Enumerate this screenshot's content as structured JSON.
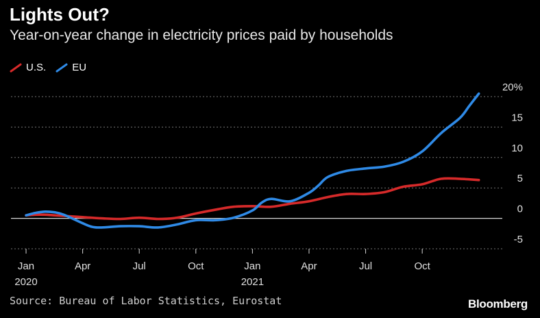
{
  "title": "Lights Out?",
  "subtitle": "Year-on-year change in electricity prices paid by households",
  "legend": [
    {
      "label": "U.S.",
      "color": "#d62a2a",
      "icon": "red-line-icon"
    },
    {
      "label": "EU",
      "color": "#2f8ae6",
      "icon": "blue-line-icon"
    }
  ],
  "source": "Source: Bureau of Labor Statistics, Eurostat",
  "brand": "Bloomberg",
  "chart_data": {
    "type": "line",
    "title": "Lights Out?",
    "subtitle": "Year-on-year change in electricity prices paid by households",
    "xlabel": "",
    "ylabel": "",
    "ylim": [
      -5,
      20
    ],
    "y_ticks": [
      20,
      15,
      10,
      5,
      0,
      -5
    ],
    "y_tick_labels": [
      "20%",
      "15",
      "10",
      "5",
      "0",
      "-5"
    ],
    "x_ticks": [
      {
        "month_index": 0,
        "label": "Jan",
        "sublabel": "2020"
      },
      {
        "month_index": 3,
        "label": "Apr",
        "sublabel": ""
      },
      {
        "month_index": 6,
        "label": "Jul",
        "sublabel": ""
      },
      {
        "month_index": 9,
        "label": "Oct",
        "sublabel": ""
      },
      {
        "month_index": 12,
        "label": "Jan",
        "sublabel": "2021"
      },
      {
        "month_index": 15,
        "label": "Apr",
        "sublabel": ""
      },
      {
        "month_index": 18,
        "label": "Jul",
        "sublabel": ""
      },
      {
        "month_index": 21,
        "label": "Oct",
        "sublabel": ""
      }
    ],
    "x_range": [
      -0.8,
      24.7
    ],
    "grid": true,
    "series": [
      {
        "name": "U.S.",
        "color": "#d62a2a",
        "x": [
          0,
          0.5,
          1,
          1.5,
          2,
          3,
          4,
          5,
          6,
          7,
          8,
          9,
          10,
          11,
          12,
          13,
          14,
          15,
          16,
          17,
          18,
          19,
          20,
          21,
          22,
          23,
          24
        ],
        "values": [
          0.5,
          0.6,
          0.6,
          0.5,
          0.4,
          0.2,
          0.0,
          -0.1,
          0.1,
          -0.1,
          0.1,
          0.8,
          1.4,
          1.9,
          2.0,
          1.9,
          2.4,
          2.8,
          3.5,
          4.0,
          4.0,
          4.3,
          5.2,
          5.6,
          6.5,
          6.5,
          6.3
        ]
      },
      {
        "name": "EU",
        "color": "#2f8ae6",
        "x": [
          0,
          0.5,
          1,
          1.5,
          2,
          3,
          3.5,
          4,
          5,
          6,
          7,
          8,
          9,
          10,
          11,
          12,
          12.5,
          13,
          14,
          15,
          15.5,
          16,
          17,
          18,
          19,
          20,
          21,
          22,
          23,
          23.5,
          24
        ],
        "values": [
          0.5,
          0.9,
          1.1,
          1.0,
          0.6,
          -0.8,
          -1.4,
          -1.5,
          -1.3,
          -1.3,
          -1.5,
          -1.0,
          -0.3,
          -0.3,
          0.1,
          1.3,
          2.6,
          3.2,
          2.8,
          4.2,
          5.4,
          6.8,
          7.8,
          8.2,
          8.5,
          9.3,
          11.0,
          14.0,
          16.5,
          18.5,
          20.5
        ]
      }
    ]
  }
}
